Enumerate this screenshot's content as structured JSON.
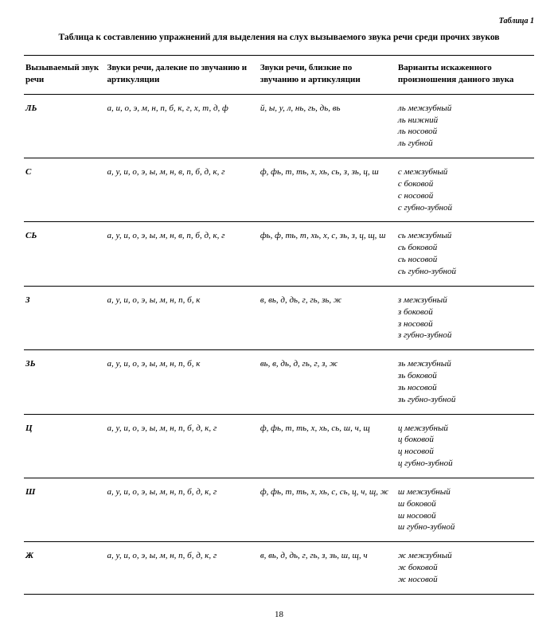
{
  "table_label": "Таблица 1",
  "title": "Таблица к составлению упражнений для выделения на слух вызываемого звука речи среди прочих звуков",
  "headers": {
    "sound": "Вызываемый звук речи",
    "far": "Звуки речи, далекие по звучанию и артикуляции",
    "near": "Звуки речи, близкие по звучанию и артикуляции",
    "variants": "Варианты искажен­ного произношения данного звука"
  },
  "rows": [
    {
      "sound": "ЛЬ",
      "far": "а, и, о, э, м, н, п, б, к, г, х, т, д, ф",
      "near": "й, ы, у, л, нь, гь, дь, вь",
      "variants": [
        "ль межзубный",
        "ль нижний",
        "ль носовой",
        "ль губной"
      ]
    },
    {
      "sound": "С",
      "far": "а, у, и, о, э, ы, м, н, в, п, б, д, к, г",
      "near": "ф, фь, т, ть, х, хь, сь, з, зь, ц, ш",
      "variants": [
        "с межзубный",
        "с боковой",
        "с носовой",
        "с губно-зубной"
      ]
    },
    {
      "sound": "СЬ",
      "far": "а, у, и, о, э, ы, м, н, в, п, б, д, к, г",
      "near": "фь, ф, ть, т, хь, х, с, зь, з, ц, щ, ш",
      "variants": [
        "сь межзубный",
        "сь боковой",
        "сь носовой",
        "сь губно-зубной"
      ]
    },
    {
      "sound": "З",
      "far": "а, у, и, о, э, ы, м, н, п, б, к",
      "near": "в, вь, д, дь, г, гь, зь, ж",
      "variants": [
        "з межзубный",
        "з боковой",
        "з носовой",
        "з губно-зубной"
      ]
    },
    {
      "sound": "ЗЬ",
      "far": "а, у, и, о, э, ы, м, н, п, б, к",
      "near": "вь, в, дь, д, гь, г, з, ж",
      "variants": [
        "зь межзубный",
        "зь боковой",
        "зь носовой",
        "зь губно-зубной"
      ]
    },
    {
      "sound": "Ц",
      "far": "а, у, и, о, э, ы, м, н, п, б, д, к, г",
      "near": "ф, фь, т, ть, х, хь, сь, ш, ч, щ",
      "variants": [
        "ц межзубный",
        "ц боковой",
        "ц носовой",
        "ц губно-зубной"
      ]
    },
    {
      "sound": "Ш",
      "far": "а, у, и, о, э, ы, м, н, п, б, д, к, г",
      "near": "ф, фь, т, ть, х, хь, с, сь, ц, ч, щ, ж",
      "variants": [
        "ш межзубный",
        "ш боковой",
        "ш носовой",
        "ш губно-зубной"
      ]
    },
    {
      "sound": "Ж",
      "far": "а, у, и, о, э, ы, м, н, п, б, д, к, г",
      "near": "в, вь, д, дь, г, гь, з, зь, ш, щ, ч",
      "variants": [
        "ж межзубный",
        "ж боковой",
        "ж носовой"
      ]
    }
  ],
  "page_number": "18",
  "colors": {
    "background": "#ffffff",
    "text": "#000000",
    "border": "#000000"
  }
}
